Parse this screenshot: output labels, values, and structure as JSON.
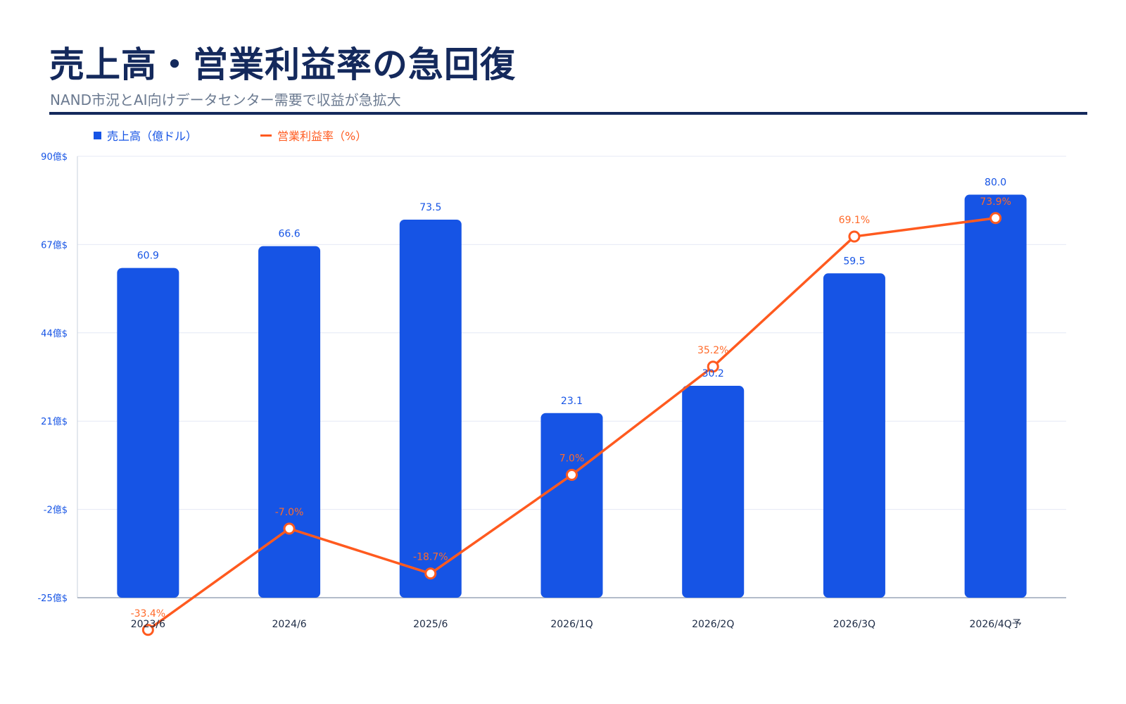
{
  "header": {
    "title": "売上高・営業利益率の急回復",
    "subtitle": "NAND市況とAI向けデータセンター需要で収益が急拡大"
  },
  "colors": {
    "title": "#14295c",
    "bar": "#1654e5",
    "line": "#ff5a1f",
    "grid": "#e4e9f5"
  },
  "chart_data": {
    "type": "bar",
    "categories": [
      "2023/6",
      "2024/6",
      "2025/6",
      "2026/1Q",
      "2026/2Q",
      "2026/3Q",
      "2026/4Q予"
    ],
    "y_ticks": [
      "90億$",
      "67億$",
      "44億$",
      "21億$",
      "-2億$",
      "-25億$"
    ],
    "ylim": [
      -25,
      90
    ],
    "grid": true,
    "legend_position": "top-left",
    "series": [
      {
        "name": "売上高（億ドル）",
        "type": "bar",
        "values": [
          60.9,
          66.6,
          73.5,
          23.1,
          30.2,
          59.5,
          80.0
        ],
        "labels": [
          "60.9",
          "66.6",
          "73.5",
          "23.1",
          "30.2",
          "59.5",
          "80.0"
        ]
      },
      {
        "name": "営業利益率（%）",
        "type": "line",
        "values": [
          -33.4,
          -7.0,
          -18.7,
          7.0,
          35.2,
          69.1,
          73.9
        ],
        "labels": [
          "-33.4%",
          "-7.0%",
          "-18.7%",
          "7.0%",
          "35.2%",
          "69.1%",
          "73.9%"
        ]
      }
    ]
  }
}
